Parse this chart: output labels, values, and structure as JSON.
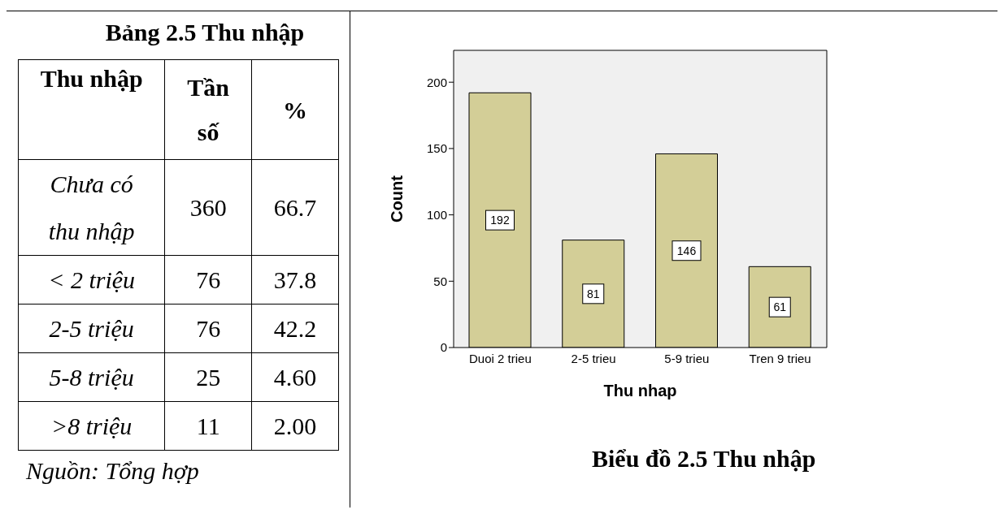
{
  "chart_data": [
    {
      "type": "other",
      "title": "Bảng 2.5 Thu nhập",
      "xlabel": "Thu nhập",
      "categories": [
        "Chưa có thu nhập",
        "< 2 triệu",
        "2-5 triệu",
        "5-8 triệu",
        ">8 triệu"
      ],
      "series": [
        {
          "name": "Tần số",
          "values": [
            360,
            76,
            76,
            25,
            11
          ],
          "value_labels": [
            "360",
            "76",
            "76",
            "25",
            "11"
          ]
        },
        {
          "name": "%",
          "values": [
            66.7,
            37.8,
            42.2,
            4.6,
            2
          ],
          "value_labels": [
            "66.7",
            "37.8",
            "42.2",
            "4.60",
            "2.00"
          ]
        }
      ],
      "annotations": [
        "Nguồn: Tổng hợp"
      ]
    },
    {
      "type": "bar",
      "title": "Biểu đồ 2.5 Thu nhập",
      "xlabel": "Thu nhap",
      "ylabel": "Count",
      "categories": [
        "Duoi 2 trieu",
        "2-5 trieu",
        "5-9 trieu",
        "Tren 9 trieu"
      ],
      "values": [
        192,
        81,
        146,
        61
      ],
      "color": "#d3ce97",
      "ylim": [
        0,
        224
      ],
      "yticks": [
        0,
        50,
        100,
        150,
        200
      ],
      "data_labels": true
    }
  ]
}
